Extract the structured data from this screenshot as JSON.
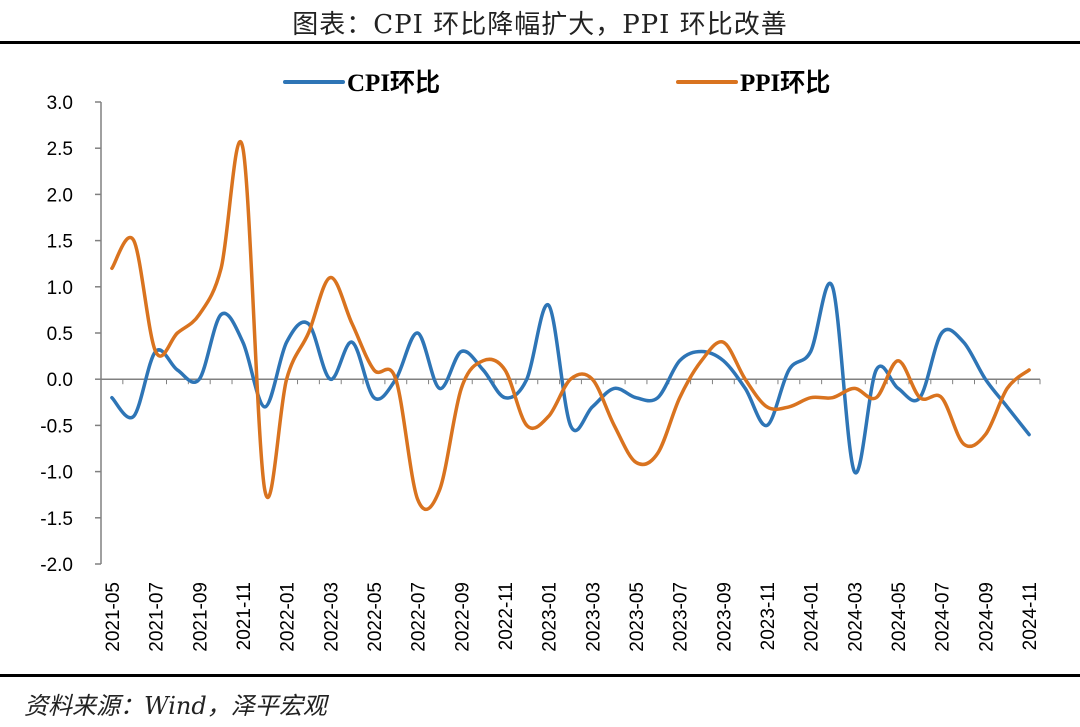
{
  "title": "图表：CPI 环比降幅扩大，PPI 环比改善",
  "source": "资料来源：Wind，泽平宏观",
  "colors": {
    "cpi": "#2E75B6",
    "ppi": "#D9731F",
    "axis": "#808080",
    "text": "#000000"
  },
  "chart_data": {
    "type": "line",
    "title": "图表：CPI 环比降幅扩大，PPI 环比改善",
    "xlabel": "",
    "ylabel": "",
    "ylim": [
      -2.0,
      3.0
    ],
    "yticks": [
      "3.0",
      "2.5",
      "2.0",
      "1.5",
      "1.0",
      "0.5",
      "0.0",
      "-0.5",
      "-1.0",
      "-1.5",
      "-2.0"
    ],
    "grid": false,
    "legend_position": "top",
    "x": [
      "2021-05",
      "2021-06",
      "2021-07",
      "2021-08",
      "2021-09",
      "2021-10",
      "2021-11",
      "2021-12",
      "2022-01",
      "2022-02",
      "2022-03",
      "2022-04",
      "2022-05",
      "2022-06",
      "2022-07",
      "2022-08",
      "2022-09",
      "2022-10",
      "2022-11",
      "2022-12",
      "2023-01",
      "2023-02",
      "2023-03",
      "2023-04",
      "2023-05",
      "2023-06",
      "2023-07",
      "2023-08",
      "2023-09",
      "2023-10",
      "2023-11",
      "2023-12",
      "2024-01",
      "2024-02",
      "2024-03",
      "2024-04",
      "2024-05",
      "2024-06",
      "2024-07",
      "2024-08",
      "2024-09",
      "2024-10",
      "2024-11"
    ],
    "xticks": [
      "2021-05",
      "2021-07",
      "2021-09",
      "2021-11",
      "2022-01",
      "2022-03",
      "2022-05",
      "2022-07",
      "2022-09",
      "2022-11",
      "2023-01",
      "2023-03",
      "2023-05",
      "2023-07",
      "2023-09",
      "2023-11",
      "2024-01",
      "2024-03",
      "2024-05",
      "2024-07",
      "2024-09",
      "2024-11"
    ],
    "series": [
      {
        "name": "CPI环比",
        "values": [
          -0.2,
          -0.4,
          0.3,
          0.1,
          0.0,
          0.7,
          0.4,
          -0.3,
          0.4,
          0.6,
          0.0,
          0.4,
          -0.2,
          0.0,
          0.5,
          -0.1,
          0.3,
          0.1,
          -0.2,
          0.0,
          0.8,
          -0.5,
          -0.3,
          -0.1,
          -0.2,
          -0.2,
          0.2,
          0.3,
          0.2,
          -0.1,
          -0.5,
          0.1,
          0.3,
          1.0,
          -1.0,
          0.1,
          -0.1,
          -0.2,
          0.5,
          0.4,
          0.0,
          -0.3,
          -0.6
        ]
      },
      {
        "name": "PPI环比",
        "values": [
          1.2,
          1.5,
          0.3,
          0.5,
          0.7,
          1.2,
          2.5,
          -1.2,
          0.0,
          0.5,
          1.1,
          0.6,
          0.1,
          0.0,
          -1.3,
          -1.2,
          -0.1,
          0.2,
          0.1,
          -0.5,
          -0.4,
          0.0,
          0.0,
          -0.5,
          -0.9,
          -0.8,
          -0.2,
          0.2,
          0.4,
          0.0,
          -0.3,
          -0.3,
          -0.2,
          -0.2,
          -0.1,
          -0.2,
          0.2,
          -0.2,
          -0.2,
          -0.7,
          -0.6,
          -0.1,
          0.1
        ]
      }
    ]
  }
}
